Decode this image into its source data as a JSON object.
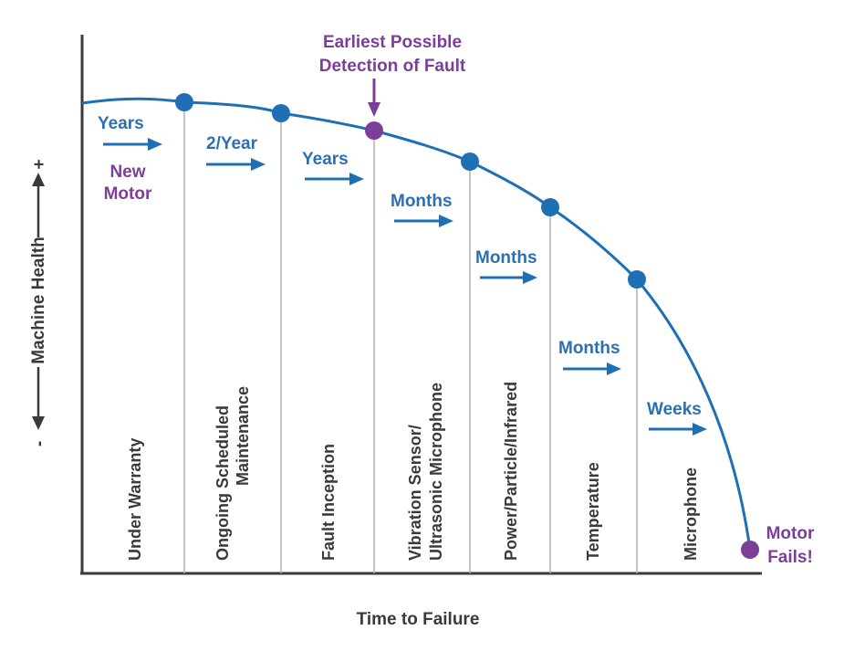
{
  "colors": {
    "curve": "#1f6fb5",
    "blue_text": "#2d6fb3",
    "purple": "#7b3f98",
    "axis": "#3a3a3a",
    "divider": "#b0b0b0"
  },
  "axes": {
    "x_label": "Time to Failure",
    "y_label": "Machine Health",
    "y_minus": "-",
    "y_plus": "+"
  },
  "callouts": {
    "earliest_line1": "Earliest Possible",
    "earliest_line2": "Detection of Fault",
    "new_motor_line1": "New",
    "new_motor_line2": "Motor",
    "fails_line1": "Motor",
    "fails_line2": "Fails!"
  },
  "stages": [
    {
      "label": "Under Warranty",
      "interval": "Years"
    },
    {
      "label": "Ongoing Scheduled",
      "label2": "Maintenance",
      "interval": "2/Year"
    },
    {
      "label": "Fault Inception",
      "interval": "Years"
    },
    {
      "label": "Vibration Sensor/",
      "label2": "Ultrasonic Microphone",
      "interval": "Months"
    },
    {
      "label": "Power/Particle/Infrared",
      "interval": "Months"
    },
    {
      "label": "Temperature",
      "interval": "Months"
    },
    {
      "label": "Microphone",
      "interval": "Weeks"
    }
  ]
}
